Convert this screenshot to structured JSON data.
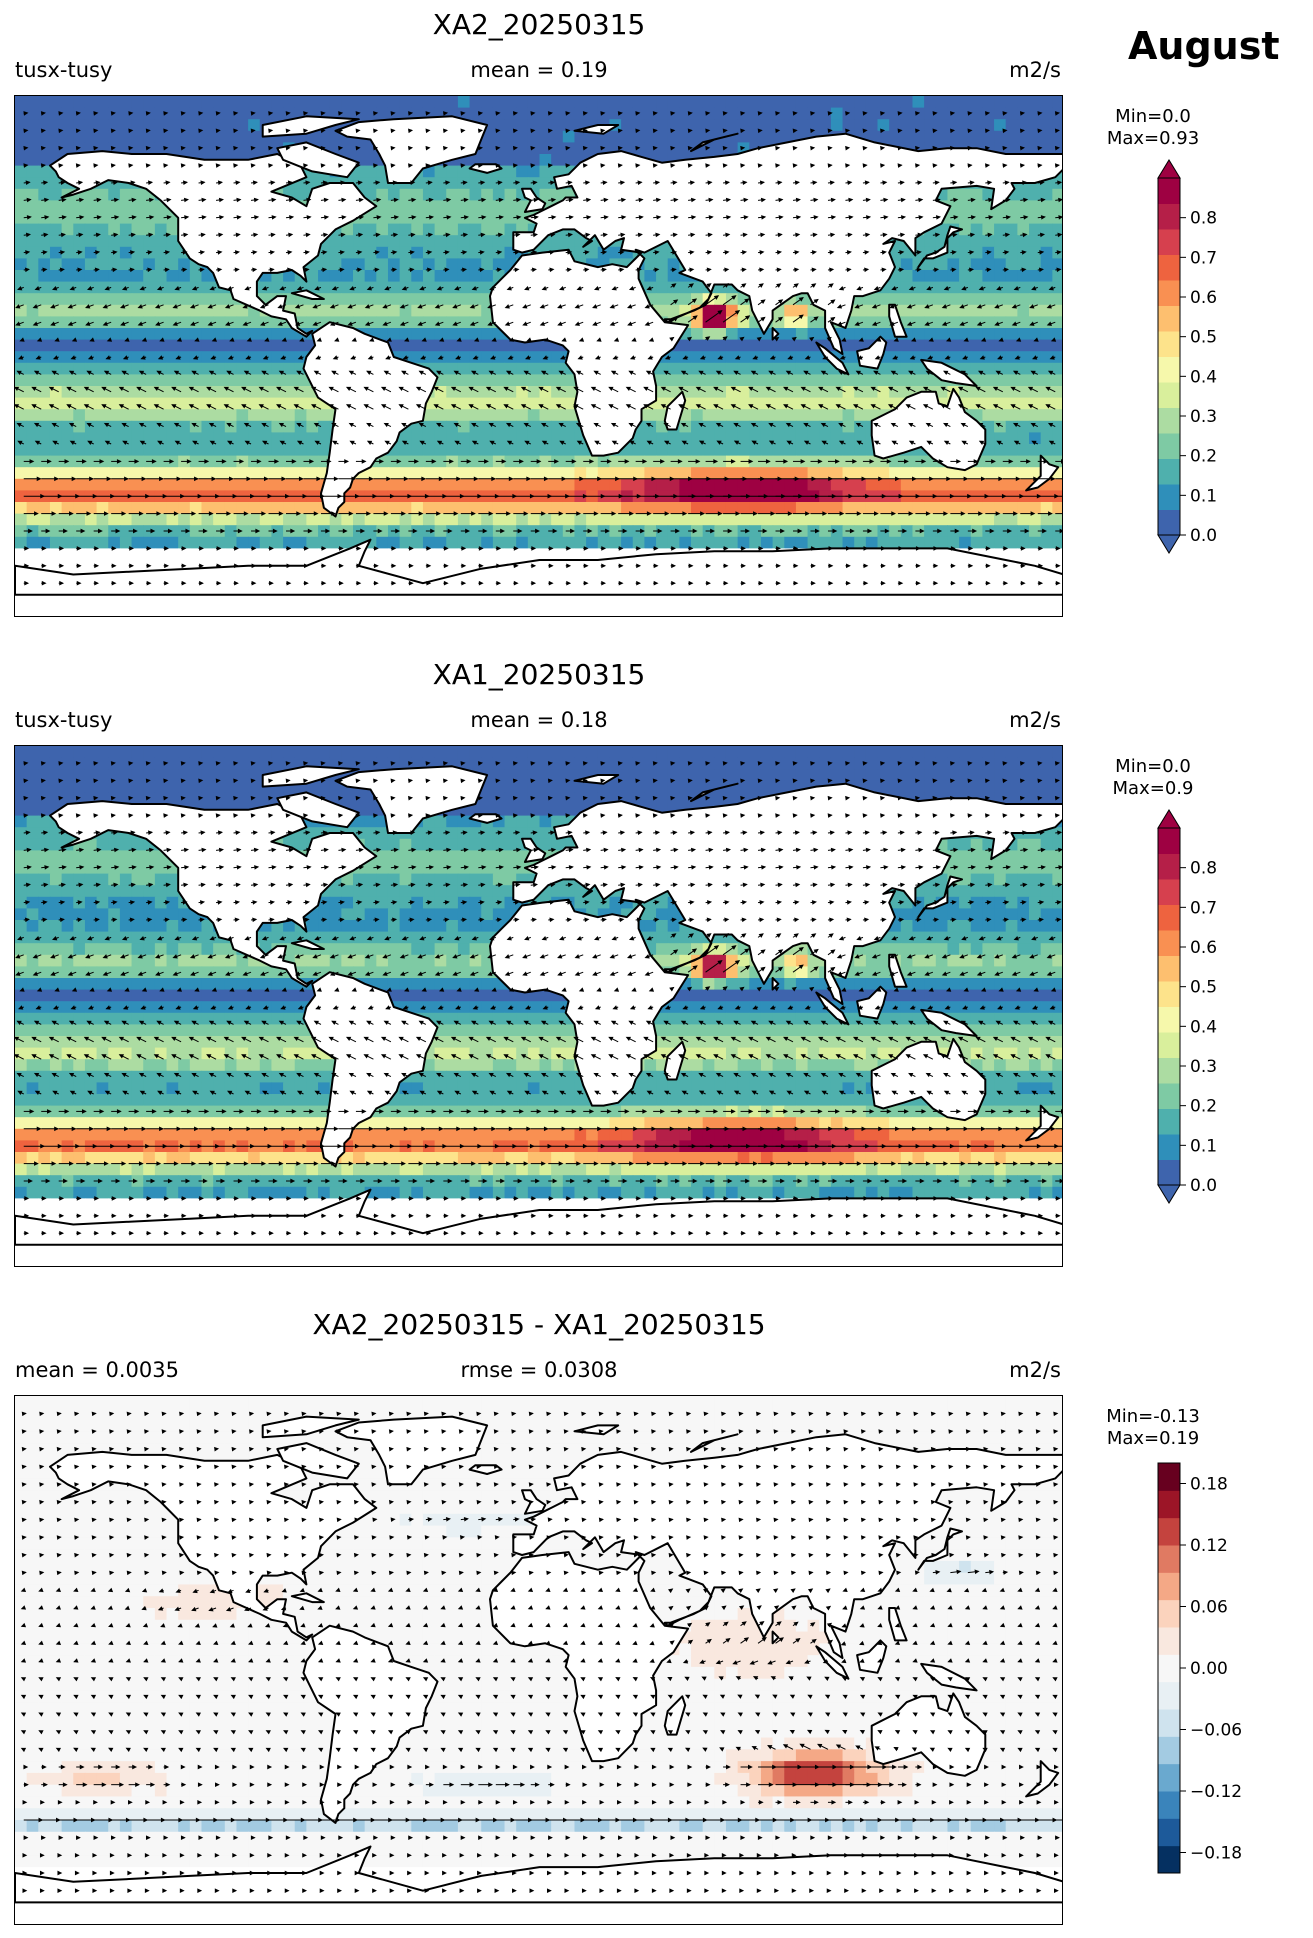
{
  "month": "August",
  "panels": [
    {
      "title": "XA2_20250315",
      "left": "tusx-tusy",
      "center": "mean = 0.19",
      "right": "m2/s",
      "minmax": [
        "Min=0.0",
        "Max=0.93"
      ],
      "colorbar": {
        "type": "sequential",
        "ticks": [
          "0.0",
          "0.1",
          "0.2",
          "0.3",
          "0.4",
          "0.5",
          "0.6",
          "0.7",
          "0.8"
        ],
        "colors": [
          "#3e64ad",
          "#2f8fba",
          "#4fb0ad",
          "#7ecaa4",
          "#acdca2",
          "#d9ef9c",
          "#f6f8ab",
          "#fde38b",
          "#fdbf6f",
          "#f99052",
          "#ee633f",
          "#d6404e",
          "#b51f48",
          "#9e0142"
        ]
      },
      "field": "magnitude"
    },
    {
      "title": "XA1_20250315",
      "left": "tusx-tusy",
      "center": "mean = 0.18",
      "right": "m2/s",
      "minmax": [
        "Min=0.0",
        "Max=0.9"
      ],
      "colorbar": {
        "type": "sequential",
        "ticks": [
          "0.0",
          "0.1",
          "0.2",
          "0.3",
          "0.4",
          "0.5",
          "0.6",
          "0.7",
          "0.8"
        ],
        "colors": [
          "#3e64ad",
          "#2f8fba",
          "#4fb0ad",
          "#7ecaa4",
          "#acdca2",
          "#d9ef9c",
          "#f6f8ab",
          "#fde38b",
          "#fdbf6f",
          "#f99052",
          "#ee633f",
          "#d6404e",
          "#b51f48",
          "#9e0142"
        ]
      },
      "field": "magnitude"
    },
    {
      "title": "XA2_20250315 - XA1_20250315",
      "left": "mean = 0.0035",
      "center": "rmse = 0.0308",
      "right": "m2/s",
      "minmax": [
        "Min=-0.13",
        "Max=0.19"
      ],
      "colorbar": {
        "type": "diverging",
        "ticks": [
          "−0.18",
          "−0.12",
          "−0.06",
          "0.00",
          "0.06",
          "0.12",
          "0.18"
        ],
        "colors": [
          "#053061",
          "#1d5a9a",
          "#3a84bb",
          "#6aa9cf",
          "#a3cbe2",
          "#cfe3ee",
          "#e8f0f4",
          "#f7f7f7",
          "#f9e8df",
          "#fbd3bd",
          "#f4a886",
          "#e07a62",
          "#c4433e",
          "#9c1527",
          "#67001f"
        ]
      },
      "field": "difference"
    }
  ]
}
